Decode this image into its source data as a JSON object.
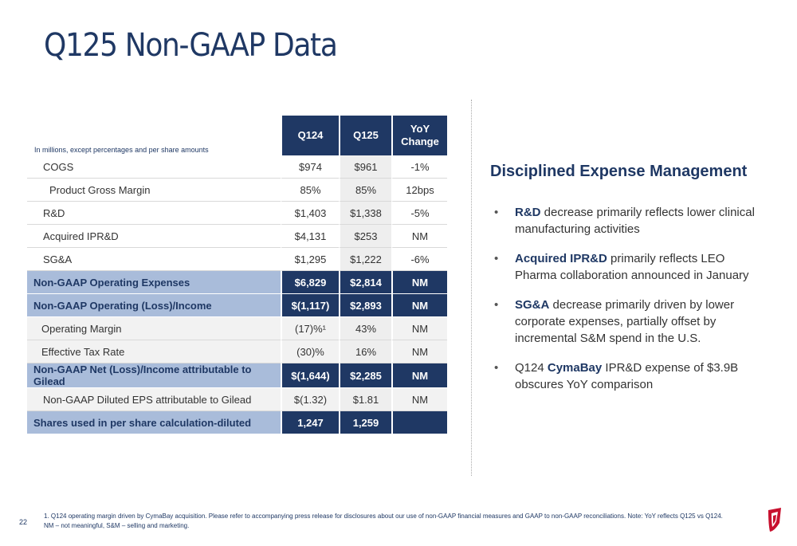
{
  "slide": {
    "title": "Q125 Non-GAAP Data",
    "page_number": "22"
  },
  "table": {
    "units_note": "In millions, except percentages and per share amounts",
    "headers": [
      "Q124",
      "Q125",
      "YoY\nChange"
    ],
    "rows": [
      {
        "label": "COGS",
        "q124": "$974",
        "q125": "$961",
        "yoy": "-1%"
      },
      {
        "label": "Product Gross Margin",
        "q124": "85%",
        "q125": "85%",
        "yoy": "12bps"
      },
      {
        "label": "R&D",
        "q124": "$1,403",
        "q125": "$1,338",
        "yoy": "-5%"
      },
      {
        "label": "Acquired IPR&D",
        "q124": "$4,131",
        "q125": "$253",
        "yoy": "NM"
      },
      {
        "label": "SG&A",
        "q124": "$1,295",
        "q125": "$1,222",
        "yoy": "-6%"
      },
      {
        "label": "Non-GAAP Operating Expenses",
        "q124": "$6,829",
        "q125": "$2,814",
        "yoy": "NM"
      },
      {
        "label": "Non-GAAP Operating (Loss)/Income",
        "q124": "$(1,117)",
        "q125": "$2,893",
        "yoy": "NM"
      },
      {
        "label": "Operating Margin",
        "q124": "(17)%¹",
        "q125": "43%",
        "yoy": "NM"
      },
      {
        "label": "Effective Tax Rate",
        "q124": "(30)%",
        "q125": "16%",
        "yoy": "NM"
      },
      {
        "label": "Non-GAAP Net (Loss)/Income attributable to Gilead",
        "q124": "$(1,644)",
        "q125": "$2,285",
        "yoy": "NM"
      },
      {
        "label": "Non-GAAP Diluted EPS attributable to Gilead",
        "q124": "$(1.32)",
        "q125": "$1.81",
        "yoy": "NM"
      },
      {
        "label": "Shares used in per share calculation-diluted",
        "q124": "1,247",
        "q125": "1,259",
        "yoy": ""
      }
    ]
  },
  "commentary": {
    "heading": "Disciplined Expense Management",
    "bullets": [
      {
        "bold": "R&D",
        "text": " decrease primarily reflects lower clinical manufacturing activities"
      },
      {
        "bold": "Acquired IPR&D",
        "text": " primarily reflects LEO Pharma collaboration announced in January"
      },
      {
        "bold": "SG&A",
        "text": " decrease primarily driven by lower corporate expenses, partially offset by incremental S&M spend in the U.S."
      },
      {
        "pre": "Q124 ",
        "bold": "CymaBay",
        "text": " IPR&D expense of $3.9B obscures YoY comparison"
      }
    ],
    "bullet_char": "•"
  },
  "footnote": {
    "line1": "1. Q124 operating margin driven by CymaBay acquisition. Please refer to accompanying press release for disclosures about our use of non-GAAP financial measures and GAAP to non-GAAP reconciliations. Note: YoY reflects Q125 vs Q124.",
    "line2": "NM – not meaningful, S&M – selling and marketing."
  },
  "colors": {
    "navy": "#1f3864",
    "highlight_row": "#a9bcda"
  },
  "icons": {
    "logo": "gilead-logo"
  }
}
